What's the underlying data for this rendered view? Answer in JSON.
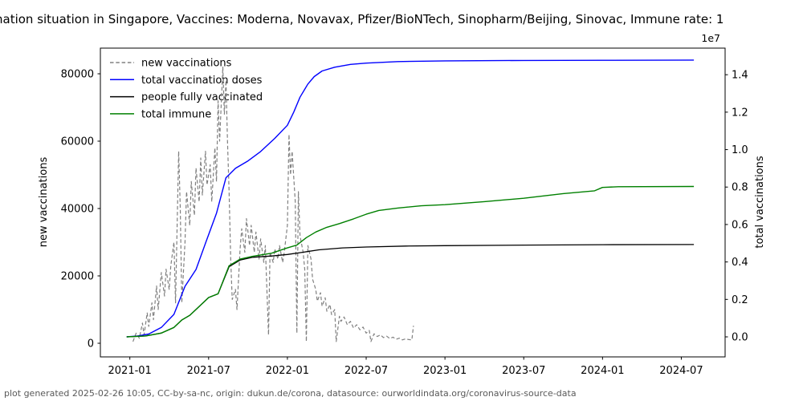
{
  "title": {
    "text": "nation situation in Singapore, Vaccines: Moderna, Novavax, Pfizer/BioNTech, Sinopharm/Beijing, Sinovac, Immune rate: 1"
  },
  "footer": {
    "text": "plot generated 2025-02-26 10:05, CC-by-sa-nc, origin: dukun.de/corona, datasource: ourworldindata.org/coronavirus-source-data"
  },
  "chart_data": {
    "type": "line",
    "title": "nation situation in Singapore, Vaccines: Moderna, Novavax, Pfizer/BioNTech, Sinopharm/Beijing, Sinovac, Immune rate: 1",
    "x_axis": {
      "tick_labels": [
        "2021-01",
        "2021-07",
        "2022-01",
        "2022-07",
        "2023-01",
        "2023-07",
        "2024-01",
        "2024-07"
      ],
      "tick_positions": [
        2021.0,
        2021.5,
        2022.0,
        2022.5,
        2023.0,
        2023.5,
        2024.0,
        2024.5
      ],
      "range": [
        2020.813,
        2024.778
      ]
    },
    "y_left": {
      "label": "new vaccinations",
      "tick_values": [
        0,
        20000,
        40000,
        60000,
        80000
      ],
      "tick_labels": [
        "0",
        "20000",
        "40000",
        "60000",
        "80000"
      ],
      "range": [
        -4048,
        87619
      ]
    },
    "y_right": {
      "label": "total vaccinations",
      "multiplier_label": "1e7",
      "tick_values": [
        0.0,
        0.2,
        0.4,
        0.6,
        0.8,
        1.0,
        1.2,
        1.4
      ],
      "tick_labels": [
        "0.0",
        "0.2",
        "0.4",
        "0.6",
        "0.8",
        "1.0",
        "1.2",
        "1.4"
      ],
      "range": [
        -0.107,
        1.542
      ]
    },
    "legend": {
      "position": "upper-left",
      "frame": false,
      "entries": [
        {
          "label": "new vaccinations",
          "color": "#808080",
          "dash": true
        },
        {
          "label": "total vaccination doses",
          "color": "#0000ff",
          "dash": false
        },
        {
          "label": "people fully vaccinated",
          "color": "#000000",
          "dash": false
        },
        {
          "label": "total immune",
          "color": "#008000",
          "dash": false
        }
      ]
    },
    "series": [
      {
        "name": "new vaccinations",
        "axis": "left",
        "color": "#808080",
        "style": "dashed",
        "width": 1.2,
        "points": [
          [
            2021.02,
            500
          ],
          [
            2021.04,
            3000
          ],
          [
            2021.06,
            1500
          ],
          [
            2021.08,
            6000
          ],
          [
            2021.09,
            2500
          ],
          [
            2021.11,
            9000
          ],
          [
            2021.12,
            5000
          ],
          [
            2021.14,
            12000
          ],
          [
            2021.15,
            7000
          ],
          [
            2021.17,
            17000
          ],
          [
            2021.18,
            10000
          ],
          [
            2021.2,
            21000
          ],
          [
            2021.22,
            14000
          ],
          [
            2021.23,
            22000
          ],
          [
            2021.25,
            16000
          ],
          [
            2021.26,
            23000
          ],
          [
            2021.28,
            30000
          ],
          [
            2021.29,
            12000
          ],
          [
            2021.31,
            57000
          ],
          [
            2021.32,
            40000
          ],
          [
            2021.33,
            12000
          ],
          [
            2021.35,
            30000
          ],
          [
            2021.36,
            45000
          ],
          [
            2021.38,
            35000
          ],
          [
            2021.39,
            48000
          ],
          [
            2021.41,
            38000
          ],
          [
            2021.42,
            52000
          ],
          [
            2021.44,
            42000
          ],
          [
            2021.45,
            55000
          ],
          [
            2021.46,
            44000
          ],
          [
            2021.48,
            57000
          ],
          [
            2021.49,
            47000
          ],
          [
            2021.51,
            53000
          ],
          [
            2021.52,
            42000
          ],
          [
            2021.54,
            58000
          ],
          [
            2021.55,
            48000
          ],
          [
            2021.56,
            72000
          ],
          [
            2021.57,
            60000
          ],
          [
            2021.59,
            82000
          ],
          [
            2021.6,
            68000
          ],
          [
            2021.61,
            78000
          ],
          [
            2021.62,
            60000
          ],
          [
            2021.63,
            45000
          ],
          [
            2021.64,
            25000
          ],
          [
            2021.65,
            13000
          ],
          [
            2021.67,
            16000
          ],
          [
            2021.68,
            10000
          ],
          [
            2021.7,
            28000
          ],
          [
            2021.71,
            34000
          ],
          [
            2021.73,
            27000
          ],
          [
            2021.74,
            37000
          ],
          [
            2021.76,
            29000
          ],
          [
            2021.77,
            35000
          ],
          [
            2021.79,
            27000
          ],
          [
            2021.8,
            33000
          ],
          [
            2021.82,
            25000
          ],
          [
            2021.83,
            31000
          ],
          [
            2021.85,
            24000
          ],
          [
            2021.86,
            29000
          ],
          [
            2021.88,
            2500
          ],
          [
            2021.89,
            27000
          ],
          [
            2021.91,
            24000
          ],
          [
            2021.92,
            28000
          ],
          [
            2021.94,
            25000
          ],
          [
            2021.95,
            29000
          ],
          [
            2021.97,
            24000
          ],
          [
            2021.98,
            27000
          ],
          [
            2022.0,
            35000
          ],
          [
            2022.01,
            62000
          ],
          [
            2022.02,
            50000
          ],
          [
            2022.03,
            57000
          ],
          [
            2022.05,
            42000
          ],
          [
            2022.06,
            3000
          ],
          [
            2022.07,
            45000
          ],
          [
            2022.08,
            32000
          ],
          [
            2022.1,
            27000
          ],
          [
            2022.11,
            22000
          ],
          [
            2022.12,
            500
          ],
          [
            2022.13,
            29000
          ],
          [
            2022.15,
            25000
          ],
          [
            2022.16,
            19000
          ],
          [
            2022.18,
            16000
          ],
          [
            2022.19,
            12500
          ],
          [
            2022.21,
            15000
          ],
          [
            2022.22,
            11000
          ],
          [
            2022.24,
            13500
          ],
          [
            2022.25,
            9500
          ],
          [
            2022.27,
            11500
          ],
          [
            2022.28,
            8500
          ],
          [
            2022.3,
            10000
          ],
          [
            2022.31,
            500
          ],
          [
            2022.33,
            8000
          ],
          [
            2022.34,
            6500
          ],
          [
            2022.36,
            7800
          ],
          [
            2022.38,
            5500
          ],
          [
            2022.4,
            6500
          ],
          [
            2022.42,
            4500
          ],
          [
            2022.44,
            5500
          ],
          [
            2022.46,
            4000
          ],
          [
            2022.48,
            4800
          ],
          [
            2022.5,
            3000
          ],
          [
            2022.52,
            3800
          ],
          [
            2022.53,
            500
          ],
          [
            2022.55,
            2800
          ],
          [
            2022.57,
            2000
          ],
          [
            2022.59,
            2500
          ],
          [
            2022.61,
            1700
          ],
          [
            2022.63,
            2100
          ],
          [
            2022.65,
            1400
          ],
          [
            2022.67,
            1800
          ],
          [
            2022.69,
            1200
          ],
          [
            2022.71,
            1500
          ],
          [
            2022.73,
            1000
          ],
          [
            2022.75,
            1300
          ],
          [
            2022.77,
            1100
          ],
          [
            2022.79,
            1000
          ],
          [
            2022.8,
            5200
          ]
        ]
      },
      {
        "name": "total vaccination doses",
        "axis": "right",
        "unit": "1e7",
        "color": "#0000ff",
        "style": "solid",
        "width": 1.4,
        "points": [
          [
            2020.98,
            0
          ],
          [
            2021.05,
            0.005
          ],
          [
            2021.12,
            0.015
          ],
          [
            2021.2,
            0.05
          ],
          [
            2021.28,
            0.12
          ],
          [
            2021.35,
            0.27
          ],
          [
            2021.42,
            0.36
          ],
          [
            2021.48,
            0.5
          ],
          [
            2021.55,
            0.66
          ],
          [
            2021.61,
            0.85
          ],
          [
            2021.67,
            0.9
          ],
          [
            2021.75,
            0.94
          ],
          [
            2021.83,
            0.99
          ],
          [
            2021.92,
            1.06
          ],
          [
            2022.0,
            1.13
          ],
          [
            2022.04,
            1.2
          ],
          [
            2022.08,
            1.28
          ],
          [
            2022.13,
            1.35
          ],
          [
            2022.17,
            1.39
          ],
          [
            2022.22,
            1.42
          ],
          [
            2022.3,
            1.44
          ],
          [
            2022.4,
            1.455
          ],
          [
            2022.5,
            1.462
          ],
          [
            2022.7,
            1.47
          ],
          [
            2023.0,
            1.474
          ],
          [
            2023.5,
            1.476
          ],
          [
            2024.0,
            1.477
          ],
          [
            2024.58,
            1.478
          ]
        ]
      },
      {
        "name": "people fully vaccinated",
        "axis": "right",
        "unit": "1e7",
        "color": "#000000",
        "style": "solid",
        "width": 1.3,
        "points": [
          [
            2020.98,
            0
          ],
          [
            2021.1,
            0.005
          ],
          [
            2021.2,
            0.02
          ],
          [
            2021.28,
            0.05
          ],
          [
            2021.33,
            0.09
          ],
          [
            2021.38,
            0.115
          ],
          [
            2021.45,
            0.17
          ],
          [
            2021.5,
            0.21
          ],
          [
            2021.56,
            0.23
          ],
          [
            2021.63,
            0.375
          ],
          [
            2021.7,
            0.41
          ],
          [
            2021.78,
            0.425
          ],
          [
            2021.9,
            0.432
          ],
          [
            2022.0,
            0.44
          ],
          [
            2022.1,
            0.452
          ],
          [
            2022.2,
            0.465
          ],
          [
            2022.35,
            0.475
          ],
          [
            2022.5,
            0.48
          ],
          [
            2022.75,
            0.485
          ],
          [
            2023.0,
            0.487
          ],
          [
            2023.5,
            0.49
          ],
          [
            2024.0,
            0.492
          ],
          [
            2024.58,
            0.493
          ]
        ]
      },
      {
        "name": "total immune",
        "axis": "right",
        "unit": "1e7",
        "color": "#008000",
        "style": "solid",
        "width": 1.4,
        "points": [
          [
            2020.98,
            0
          ],
          [
            2021.1,
            0.005
          ],
          [
            2021.2,
            0.02
          ],
          [
            2021.28,
            0.05
          ],
          [
            2021.33,
            0.09
          ],
          [
            2021.38,
            0.115
          ],
          [
            2021.45,
            0.17
          ],
          [
            2021.5,
            0.21
          ],
          [
            2021.56,
            0.23
          ],
          [
            2021.63,
            0.38
          ],
          [
            2021.7,
            0.415
          ],
          [
            2021.78,
            0.43
          ],
          [
            2021.9,
            0.447
          ],
          [
            2022.0,
            0.475
          ],
          [
            2022.06,
            0.49
          ],
          [
            2022.12,
            0.53
          ],
          [
            2022.18,
            0.56
          ],
          [
            2022.25,
            0.585
          ],
          [
            2022.33,
            0.605
          ],
          [
            2022.42,
            0.63
          ],
          [
            2022.5,
            0.655
          ],
          [
            2022.58,
            0.675
          ],
          [
            2022.7,
            0.688
          ],
          [
            2022.85,
            0.7
          ],
          [
            2023.0,
            0.706
          ],
          [
            2023.25,
            0.722
          ],
          [
            2023.5,
            0.74
          ],
          [
            2023.75,
            0.765
          ],
          [
            2023.95,
            0.78
          ],
          [
            2024.0,
            0.798
          ],
          [
            2024.1,
            0.802
          ],
          [
            2024.58,
            0.803
          ]
        ]
      }
    ]
  }
}
